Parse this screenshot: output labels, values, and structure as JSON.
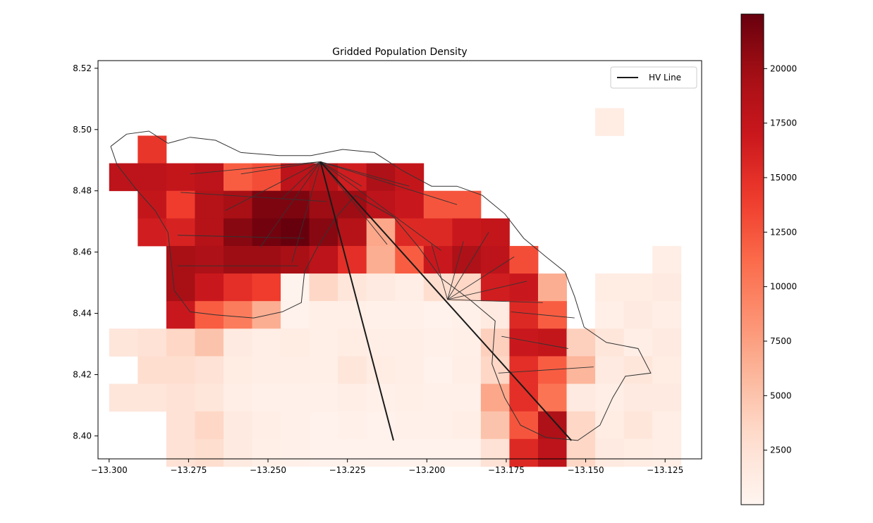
{
  "chart_data": {
    "type": "heatmap",
    "title": "Gridded Population Density",
    "xlabel": "",
    "ylabel": "",
    "xlim": [
      -13.3035,
      -13.1135
    ],
    "ylim": [
      8.3925,
      8.5225
    ],
    "xticks": [
      -13.3,
      -13.275,
      -13.25,
      -13.225,
      -13.2,
      -13.175,
      -13.15,
      -13.125
    ],
    "xtick_labels": [
      "−13.300",
      "−13.275",
      "−13.250",
      "−13.225",
      "−13.200",
      "−13.175",
      "−13.150",
      "−13.125"
    ],
    "yticks": [
      8.4,
      8.42,
      8.44,
      8.46,
      8.48,
      8.5,
      8.52
    ],
    "ytick_labels": [
      "8.40",
      "8.42",
      "8.44",
      "8.46",
      "8.48",
      "8.50",
      "8.52"
    ],
    "grid": false,
    "colormap": "Reds",
    "colorbar": {
      "min": 0,
      "max": 22500,
      "ticks": [
        2500,
        5000,
        7500,
        10000,
        12500,
        15000,
        17500,
        20000
      ],
      "tick_labels": [
        "2500",
        "5000",
        "7500",
        "10000",
        "12500",
        "15000",
        "17500",
        "20000"
      ]
    },
    "grid_cells": {
      "lon_start": -13.3,
      "lat_start": 8.507,
      "step": 0.009,
      "rows": [
        [
          null,
          null,
          null,
          null,
          null,
          null,
          null,
          null,
          null,
          null,
          null,
          null,
          null,
          null,
          null,
          null,
          null,
          1200,
          null,
          null
        ],
        [
          null,
          14500,
          null,
          null,
          null,
          null,
          null,
          null,
          null,
          null,
          null,
          null,
          null,
          null,
          null,
          null,
          null,
          null,
          null,
          null
        ],
        [
          18000,
          18000,
          17500,
          18000,
          12000,
          13000,
          18000,
          18500,
          16500,
          19000,
          17500,
          null,
          null,
          null,
          null,
          null,
          null,
          null,
          null,
          null
        ],
        [
          null,
          17500,
          14000,
          18500,
          19500,
          21500,
          21500,
          20000,
          20000,
          18000,
          17000,
          12500,
          12500,
          null,
          null,
          null,
          null,
          null,
          null,
          null
        ],
        [
          null,
          16500,
          16000,
          18500,
          21000,
          22000,
          22500,
          21000,
          18500,
          7000,
          15500,
          15500,
          17000,
          17500,
          null,
          null,
          null,
          null,
          null,
          null
        ],
        [
          null,
          null,
          19500,
          19000,
          20000,
          20000,
          19500,
          18000,
          15000,
          6500,
          12000,
          17000,
          19000,
          18000,
          13000,
          null,
          null,
          null,
          null,
          1000
        ],
        [
          null,
          null,
          19500,
          17000,
          15000,
          14000,
          300,
          3500,
          2000,
          1500,
          1000,
          3000,
          3500,
          16500,
          17000,
          6500,
          null,
          1200,
          1200,
          1500
        ],
        [
          null,
          null,
          17000,
          12000,
          10000,
          6500,
          500,
          800,
          800,
          600,
          600,
          500,
          700,
          1500,
          15500,
          12000,
          null,
          800,
          1500,
          1000
        ],
        [
          2000,
          2500,
          3500,
          5000,
          1500,
          900,
          1200,
          800,
          1200,
          1000,
          900,
          700,
          800,
          4000,
          17000,
          17500,
          4000,
          2000,
          1000,
          1500
        ],
        [
          null,
          3000,
          3000,
          2500,
          1200,
          900,
          1000,
          800,
          2000,
          1200,
          1000,
          500,
          900,
          3500,
          15000,
          12000,
          6000,
          1500,
          2000,
          1200
        ],
        [
          2000,
          2000,
          2500,
          2000,
          1000,
          700,
          600,
          600,
          900,
          700,
          800,
          600,
          700,
          7000,
          15000,
          10500,
          1500,
          1000,
          1500,
          1500
        ],
        [
          null,
          null,
          2500,
          3500,
          1500,
          900,
          600,
          500,
          600,
          500,
          600,
          700,
          900,
          5000,
          12500,
          19000,
          3500,
          1200,
          2000,
          1000
        ],
        [
          null,
          null,
          2500,
          3000,
          1500,
          800,
          600,
          500,
          400,
          500,
          400,
          400,
          400,
          2500,
          15500,
          18000,
          3500,
          1500,
          1200,
          1000
        ]
      ]
    },
    "series": [
      {
        "name": "HV Line",
        "color": "#1a1a1a",
        "lines": [
          [
            [
              -13.2335,
              8.4895
            ],
            [
              -13.2105,
              8.3985
            ]
          ],
          [
            [
              -13.2335,
              8.4895
            ],
            [
              -13.1545,
              8.3985
            ]
          ]
        ]
      }
    ],
    "boundaries_color": "#333333",
    "legend_position": "upper right"
  }
}
